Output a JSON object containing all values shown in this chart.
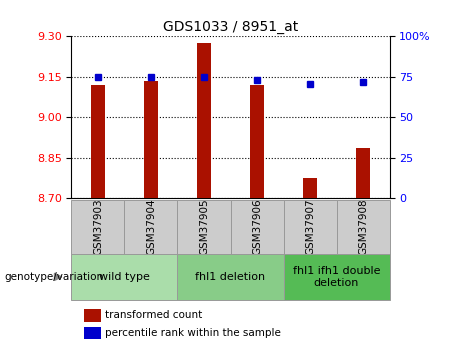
{
  "title": "GDS1033 / 8951_at",
  "samples": [
    "GSM37903",
    "GSM37904",
    "GSM37905",
    "GSM37906",
    "GSM37907",
    "GSM37908"
  ],
  "transformed_counts": [
    9.12,
    9.135,
    9.275,
    9.12,
    8.775,
    8.885
  ],
  "percentile_ranks": [
    75,
    75,
    75,
    73,
    70.5,
    72
  ],
  "ylim_left": [
    8.7,
    9.3
  ],
  "ylim_right": [
    0,
    100
  ],
  "left_ticks": [
    8.7,
    8.85,
    9.0,
    9.15,
    9.3
  ],
  "right_ticks": [
    0,
    25,
    50,
    75,
    100
  ],
  "right_tick_labels": [
    "0",
    "25",
    "50",
    "75",
    "100%"
  ],
  "groups": [
    {
      "label": "wild type",
      "samples": [
        0,
        1
      ],
      "color": "#aaddaa"
    },
    {
      "label": "fhl1 deletion",
      "samples": [
        2,
        3
      ],
      "color": "#88cc88"
    },
    {
      "label": "fhl1 ifh1 double\ndeletion",
      "samples": [
        4,
        5
      ],
      "color": "#55bb55"
    }
  ],
  "bar_color": "#aa1100",
  "dot_color": "#0000cc",
  "title_fontsize": 10,
  "tick_fontsize": 8,
  "sample_box_color": "#cccccc",
  "sample_box_edge": "#999999",
  "background_color": "#ffffff"
}
